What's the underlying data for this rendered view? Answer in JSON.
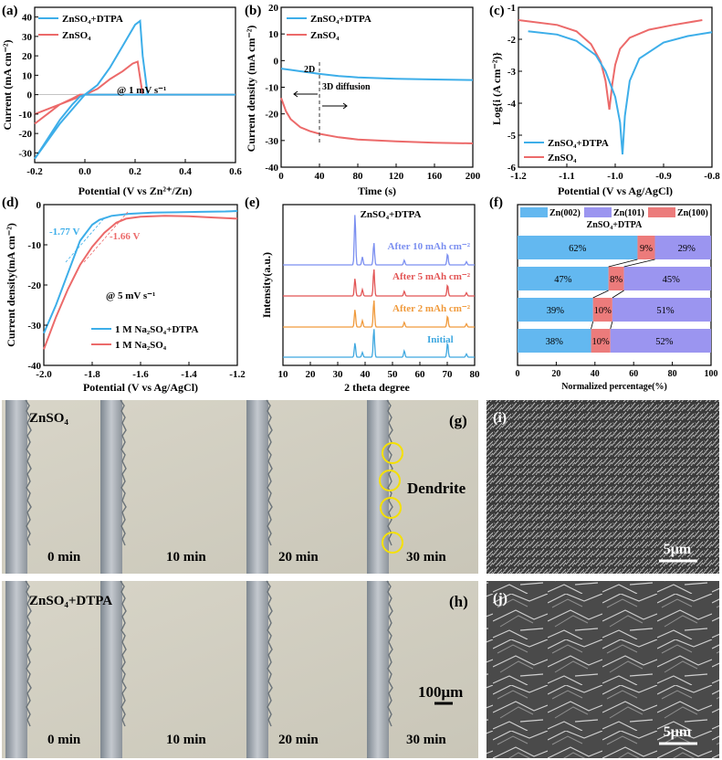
{
  "colors": {
    "blue": "#3daee9",
    "red": "#ec6a6a",
    "xrd_blue": "#7b8ff0",
    "xrd_red": "#e25555",
    "xrd_orange": "#f09a3c",
    "xrd_cyan": "#3fa8e0",
    "bar_blue": "#63b8f0",
    "bar_purple": "#9b95f0",
    "bar_red": "#ec7b7b"
  },
  "chart_data": [
    {
      "type": "line",
      "panel": "(a)",
      "xlabel": "Potential (V vs Zn²⁺/Zn)",
      "ylabel": "Current (mA cm⁻²)",
      "xlim": [
        -0.2,
        0.6
      ],
      "ylim": [
        -35,
        45
      ],
      "xticks": [
        -0.2,
        0.0,
        0.2,
        0.4,
        0.6
      ],
      "xticklabels": [
        "-0.2",
        "0.0",
        "0.2",
        "0.4",
        "0.6"
      ],
      "yticks": [
        -30,
        -20,
        -10,
        0,
        10,
        20,
        30,
        40
      ],
      "annotation": "@ 1 mV s⁻¹",
      "legend": [
        "ZnSO₄+DTPA",
        "ZnSO₄"
      ],
      "series": [
        {
          "name": "ZnSO₄+DTPA",
          "color": "blue",
          "x": [
            -0.2,
            -0.15,
            -0.1,
            -0.05,
            -0.02,
            0.0,
            0.05,
            0.1,
            0.15,
            0.2,
            0.22,
            0.23,
            0.25,
            0.6,
            0.25,
            0.1,
            0.0,
            -0.1,
            -0.2
          ],
          "y": [
            -33,
            -23,
            -13,
            -5,
            -1,
            0,
            5,
            14,
            25,
            36,
            38,
            20,
            0,
            0,
            0,
            0,
            0,
            -15,
            -33
          ]
        },
        {
          "name": "ZnSO₄",
          "color": "red",
          "x": [
            -0.2,
            -0.15,
            -0.1,
            -0.05,
            -0.02,
            0.0,
            0.05,
            0.1,
            0.15,
            0.19,
            0.21,
            0.23,
            0.6,
            0.25,
            0.1,
            0.0,
            -0.1,
            -0.2
          ],
          "y": [
            -15,
            -10,
            -5,
            -2,
            0,
            0,
            3,
            8,
            12,
            16,
            17,
            0,
            0,
            0,
            0,
            0,
            -5,
            -10
          ]
        }
      ]
    },
    {
      "type": "line",
      "panel": "(b)",
      "xlabel": "Time (s)",
      "ylabel": "Current density (mA cm⁻²)",
      "xlim": [
        0,
        200
      ],
      "ylim": [
        -40,
        20
      ],
      "xticks": [
        0,
        40,
        80,
        120,
        160,
        200
      ],
      "yticks": [
        -40,
        -30,
        -20,
        -10,
        0,
        10,
        20
      ],
      "annotations": [
        "2D",
        "3D diffusion"
      ],
      "legend": [
        "ZnSO₄+DTPA",
        "ZnSO₄"
      ],
      "series": [
        {
          "name": "ZnSO₄+DTPA",
          "color": "blue",
          "x": [
            0,
            10,
            20,
            40,
            60,
            80,
            120,
            160,
            200
          ],
          "y": [
            -3,
            -3.5,
            -4,
            -5,
            -5.8,
            -6.3,
            -6.8,
            -7.1,
            -7.3
          ]
        },
        {
          "name": "ZnSO₄",
          "color": "red",
          "x": [
            0,
            2,
            5,
            10,
            20,
            30,
            40,
            60,
            80,
            120,
            160,
            200
          ],
          "y": [
            -14,
            -16,
            -19,
            -22,
            -25,
            -26.5,
            -27.5,
            -28.8,
            -29.6,
            -30.3,
            -30.8,
            -31.1
          ]
        }
      ]
    },
    {
      "type": "line",
      "panel": "(c)",
      "xlabel": "Potential (V vs Ag/AgCl)",
      "ylabel": "Log{i (A cm⁻²)}",
      "xlim": [
        -1.2,
        -0.8
      ],
      "ylim": [
        -6,
        -1
      ],
      "xticks": [
        -1.2,
        -1.1,
        -1.0,
        -0.9,
        -0.8
      ],
      "xticklabels": [
        "-1.2",
        "-1.1",
        "-1.0",
        "-0.9",
        "-0.8"
      ],
      "yticks": [
        -6,
        -5,
        -4,
        -3,
        -2,
        -1
      ],
      "legend": [
        "ZnSO₄+DTPA",
        "ZnSO₄"
      ],
      "series": [
        {
          "name": "ZnSO₄+DTPA",
          "color": "blue",
          "x": [
            -1.18,
            -1.12,
            -1.08,
            -1.04,
            -1.02,
            -1.0,
            -0.99,
            -0.985,
            -0.98,
            -0.97,
            -0.95,
            -0.9,
            -0.85,
            -0.8
          ],
          "y": [
            -1.75,
            -1.85,
            -2.05,
            -2.5,
            -3.0,
            -3.8,
            -4.6,
            -5.6,
            -4.4,
            -3.3,
            -2.6,
            -2.1,
            -1.9,
            -1.78
          ]
        },
        {
          "name": "ZnSO₄",
          "color": "red",
          "x": [
            -1.2,
            -1.12,
            -1.08,
            -1.05,
            -1.03,
            -1.02,
            -1.012,
            -1.006,
            -1.0,
            -0.99,
            -0.97,
            -0.93,
            -0.88,
            -0.82
          ],
          "y": [
            -1.4,
            -1.55,
            -1.75,
            -2.15,
            -2.7,
            -3.3,
            -4.2,
            -3.4,
            -2.8,
            -2.3,
            -1.95,
            -1.7,
            -1.55,
            -1.4
          ]
        }
      ]
    },
    {
      "type": "line",
      "panel": "(d)",
      "xlabel": "Potential (V vs Ag/AgCl)",
      "ylabel": "Current density(mA cm⁻²)",
      "xlim": [
        -2.0,
        -1.2
      ],
      "ylim": [
        -40,
        0
      ],
      "xticks": [
        -2.0,
        -1.8,
        -1.6,
        -1.4,
        -1.2
      ],
      "xticklabels": [
        "-2.0",
        "-1.8",
        "-1.6",
        "-1.4",
        "-1.2"
      ],
      "yticks": [
        -40,
        -30,
        -20,
        -10,
        0
      ],
      "annotations": [
        "-1.77 V",
        "-1.66 V",
        "@ 5 mV s⁻¹"
      ],
      "legend": [
        "1 M Na₂SO₄+DTPA",
        "1 M Na₂SO₄"
      ],
      "series": [
        {
          "name": "1 M Na₂SO₄+DTPA",
          "color": "blue",
          "x": [
            -2.0,
            -1.95,
            -1.9,
            -1.85,
            -1.8,
            -1.77,
            -1.72,
            -1.65,
            -1.55,
            -1.45,
            -1.35,
            -1.25,
            -1.2
          ],
          "y": [
            -32,
            -25,
            -17,
            -9,
            -5,
            -3.8,
            -2.8,
            -2.3,
            -2.0,
            -1.9,
            -1.8,
            -1.7,
            -1.6
          ]
        },
        {
          "name": "1 M Na₂SO₄",
          "color": "red",
          "x": [
            -2.0,
            -1.95,
            -1.9,
            -1.85,
            -1.8,
            -1.75,
            -1.7,
            -1.66,
            -1.6,
            -1.5,
            -1.4,
            -1.3,
            -1.2
          ],
          "y": [
            -36,
            -28,
            -21,
            -15,
            -10.5,
            -7,
            -4.5,
            -3.5,
            -3,
            -2.8,
            -2.9,
            -3.2,
            -3.5
          ]
        }
      ]
    },
    {
      "type": "line",
      "panel": "(e)",
      "title": "ZnSO₄+DTPA",
      "xlabel": "2 theta degree",
      "ylabel": "Intensity(a.u.)",
      "xlim": [
        10,
        80
      ],
      "xticks": [
        10,
        20,
        30,
        40,
        50,
        60,
        70,
        80
      ],
      "peaks": [
        [
          36.3,
          0.55
        ],
        [
          39.0,
          0.2
        ],
        [
          43.2,
          0.85
        ],
        [
          54.3,
          0.15
        ],
        [
          70.1,
          0.35
        ],
        [
          77.0,
          0.1
        ]
      ],
      "series": [
        {
          "name": "After 10 mAh cm⁻²",
          "color": "xrd_blue",
          "peaks": [
            1.6,
            0.25,
            0.7,
            0.15,
            0.35,
            0.1
          ]
        },
        {
          "name": "After 5 mAh cm⁻²",
          "color": "xrd_red",
          "peaks": [
            0.55,
            0.2,
            0.85,
            0.15,
            0.35,
            0.1
          ]
        },
        {
          "name": "After 2 mAh cm⁻²",
          "color": "xrd_orange",
          "peaks": [
            0.55,
            0.2,
            0.85,
            0.15,
            0.35,
            0.1
          ]
        },
        {
          "name": "Initial",
          "color": "xrd_cyan",
          "peaks": [
            0.45,
            0.15,
            0.9,
            0.2,
            0.45,
            0.1
          ]
        }
      ]
    },
    {
      "type": "bar",
      "panel": "(f)",
      "title": "ZnSO₄+DTPA",
      "xlabel": "Normalized percentage(%)",
      "xlim": [
        0,
        100
      ],
      "xticks": [
        0,
        20,
        40,
        60,
        80,
        100
      ],
      "legend": [
        "Zn(002)",
        "Zn(101)",
        "Zn(100)"
      ],
      "rows": [
        {
          "Zn(002)": 62,
          "Zn(100)": 9,
          "Zn(101)": 29
        },
        {
          "Zn(002)": 47,
          "Zn(100)": 8,
          "Zn(101)": 45
        },
        {
          "Zn(002)": 39,
          "Zn(100)": 10,
          "Zn(101)": 51
        },
        {
          "Zn(002)": 38,
          "Zn(100)": 10,
          "Zn(101)": 52
        }
      ]
    }
  ],
  "panel_g": {
    "label": "(g)",
    "electrolyte": "ZnSO₄",
    "times": [
      "0 min",
      "10 min",
      "20 min",
      "30 min"
    ],
    "annotation": "Dendrite"
  },
  "panel_h": {
    "label": "(h)",
    "electrolyte": "ZnSO₄+DTPA",
    "times": [
      "0 min",
      "10 min",
      "20 min",
      "30 min"
    ],
    "scale": "100μm"
  },
  "panel_i": {
    "label": "(i)",
    "scale": "5μm"
  },
  "panel_j": {
    "label": "(j)",
    "scale": "5μm"
  }
}
